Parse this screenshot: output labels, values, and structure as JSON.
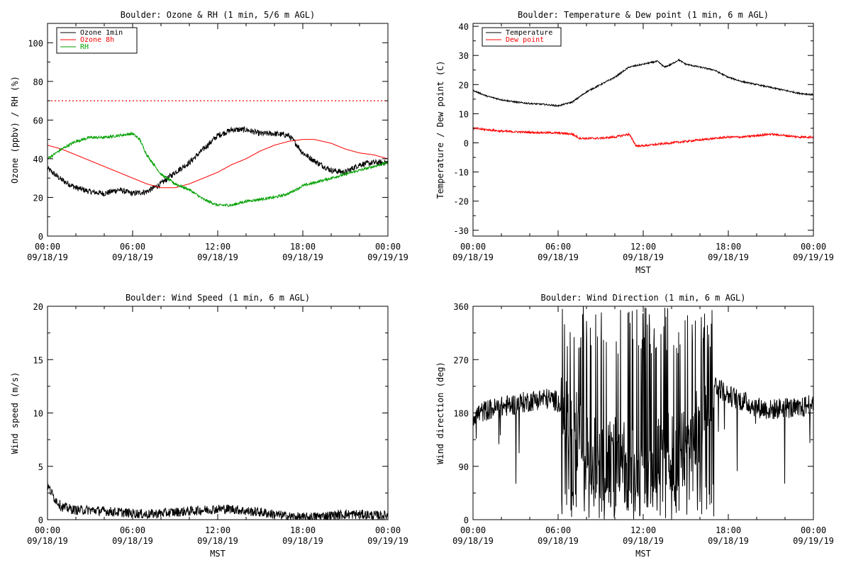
{
  "chart_data": [
    {
      "type": "line",
      "title": "Boulder: Ozone & RH (1 min, 5/6 m AGL)",
      "ylabel": "Ozone (ppbv) / RH (%)",
      "xlabel": "",
      "x_ticks": [
        "00:00\n09/18/19",
        "06:00\n09/18/19",
        "12:00\n09/18/19",
        "18:00\n09/18/19",
        "00:00\n09/19/19"
      ],
      "xlim": [
        0,
        24
      ],
      "ylim": [
        0,
        110
      ],
      "y_ticks": [
        0,
        20,
        40,
        60,
        80,
        100
      ],
      "legend": {
        "position": "top-left",
        "entries": [
          "Ozone 1min",
          "Ozone 8h",
          "RH"
        ]
      },
      "reference_line": {
        "y": 70,
        "style": "dotted",
        "color": "#ff0000"
      },
      "series": [
        {
          "name": "Ozone 1min",
          "color": "#000000",
          "noise": 1.5,
          "x": [
            0,
            1,
            2,
            3,
            4,
            5,
            6,
            7,
            8,
            9,
            10,
            11,
            12,
            13,
            14,
            15,
            16,
            17,
            17.5,
            18,
            19,
            20,
            21,
            22,
            23,
            24
          ],
          "y": [
            35,
            29,
            25,
            23,
            22,
            24,
            22,
            23,
            27,
            33,
            38,
            45,
            52,
            55,
            55,
            53,
            53,
            52,
            48,
            43,
            38,
            34,
            33,
            37,
            38,
            38
          ]
        },
        {
          "name": "Ozone 8h",
          "color": "#ff0000",
          "noise": 0,
          "x": [
            0,
            1,
            2,
            3,
            4,
            5,
            6,
            7,
            8,
            9,
            10,
            11,
            12,
            13,
            14,
            15,
            16,
            17,
            18,
            18.8,
            20,
            21,
            22,
            23,
            24
          ],
          "y": [
            47,
            45,
            42,
            39,
            36,
            33,
            30,
            27,
            25,
            25,
            27,
            30,
            33,
            37,
            40,
            44,
            47,
            49,
            50,
            50,
            48,
            45,
            43,
            42,
            40
          ]
        },
        {
          "name": "RH",
          "color": "#00a000",
          "noise": 0.7,
          "x": [
            0,
            1,
            2,
            3,
            4,
            5,
            6,
            6.5,
            7,
            8,
            9,
            10,
            11,
            12,
            13,
            14,
            15,
            16,
            17,
            18,
            19,
            20,
            21,
            22,
            23,
            24
          ],
          "y": [
            40,
            45,
            49,
            51,
            51,
            52,
            53,
            50,
            42,
            32,
            27,
            24,
            19,
            16,
            16,
            18,
            19,
            20,
            22,
            26,
            28,
            30,
            32,
            34,
            36,
            38
          ]
        }
      ]
    },
    {
      "type": "line",
      "title": "Boulder: Temperature & Dew point (1 min, 6 m AGL)",
      "ylabel": "Temperature / Dew point (C)",
      "xlabel": "MST",
      "x_ticks": [
        "00:00\n09/18/19",
        "06:00\n09/18/19",
        "12:00\n09/18/19",
        "18:00\n09/18/19",
        "00:00\n09/19/19"
      ],
      "xlim": [
        0,
        24
      ],
      "ylim": [
        -32,
        41
      ],
      "y_ticks": [
        -30,
        -20,
        -10,
        0,
        10,
        20,
        30,
        40
      ],
      "legend": {
        "position": "top-left",
        "entries": [
          "Temperature",
          "Dew point"
        ]
      },
      "series": [
        {
          "name": "Temperature",
          "color": "#000000",
          "noise": 0.25,
          "x": [
            0,
            1,
            2,
            3,
            4,
            5,
            6,
            7,
            8,
            9,
            10,
            11,
            12,
            13,
            13.5,
            14,
            14.5,
            15,
            16,
            17,
            18,
            19,
            20,
            21,
            22,
            23,
            24
          ],
          "y": [
            18,
            16,
            14.8,
            14,
            13.5,
            13.2,
            12.7,
            14,
            17.5,
            20,
            22.5,
            26,
            27,
            28,
            26,
            27,
            28.5,
            27,
            26,
            25,
            22.5,
            21,
            20,
            19,
            18,
            17,
            16.5
          ]
        },
        {
          "name": "Dew point",
          "color": "#ff0000",
          "noise": 0.35,
          "x": [
            0,
            1,
            2,
            3,
            4,
            5,
            6,
            7,
            7.5,
            8,
            9,
            10,
            11,
            11.5,
            12,
            13,
            14,
            15,
            16,
            17,
            18,
            19,
            20,
            21,
            22,
            23,
            24
          ],
          "y": [
            5,
            4.5,
            4,
            3.8,
            3.6,
            3.5,
            3.4,
            3,
            1.6,
            1.5,
            1.6,
            2,
            3,
            -1,
            -1,
            -0.5,
            0,
            0.5,
            1,
            1.5,
            2,
            2,
            2.5,
            3,
            2.5,
            2,
            2
          ]
        }
      ]
    },
    {
      "type": "line",
      "title": "Boulder: Wind Speed (1 min, 6 m AGL)",
      "ylabel": "Wind speed (m/s)",
      "xlabel": "MST",
      "x_ticks": [
        "00:00\n09/18/19",
        "06:00\n09/18/19",
        "12:00\n09/18/19",
        "18:00\n09/18/19",
        "00:00\n09/19/19"
      ],
      "xlim": [
        0,
        24
      ],
      "ylim": [
        0,
        20
      ],
      "y_ticks": [
        0,
        5,
        10,
        15,
        20
      ],
      "series": [
        {
          "name": "Wind speed",
          "color": "#000000",
          "noise": 0.45,
          "x": [
            0,
            0.5,
            1,
            2,
            3,
            4,
            5,
            6,
            7,
            8,
            9,
            10,
            11,
            12,
            13,
            14,
            15,
            16,
            17,
            18,
            19,
            20,
            21,
            22,
            23,
            24
          ],
          "y": [
            3.2,
            2.0,
            1.2,
            0.9,
            0.9,
            0.8,
            0.7,
            0.6,
            0.5,
            0.6,
            0.7,
            0.8,
            0.9,
            1.0,
            1.0,
            0.8,
            0.7,
            0.5,
            0.3,
            0.2,
            0.3,
            0.4,
            0.5,
            0.5,
            0.4,
            0.4
          ]
        }
      ]
    },
    {
      "type": "line",
      "title": "Boulder: Wind Direction (1 min, 6 m AGL)",
      "ylabel": "Wind direction (deg)",
      "xlabel": "MST",
      "x_ticks": [
        "00:00\n09/18/19",
        "06:00\n09/18/19",
        "12:00\n09/18/19",
        "18:00\n09/18/19",
        "00:00\n09/19/19"
      ],
      "xlim": [
        0,
        24
      ],
      "ylim": [
        0,
        360
      ],
      "y_ticks": [
        0,
        90,
        180,
        270,
        360
      ],
      "series": [
        {
          "name": "Wind direction",
          "color": "#000000",
          "noise": 18,
          "wrap_between": [
            6.2,
            17
          ],
          "x": [
            0,
            1,
            2,
            3,
            4,
            5,
            6,
            7,
            8,
            9,
            10,
            11,
            12,
            13,
            14,
            15,
            16,
            17,
            18,
            19,
            20,
            21,
            22,
            23,
            24
          ],
          "y": [
            175,
            185,
            190,
            195,
            200,
            205,
            200,
            150,
            120,
            110,
            100,
            90,
            80,
            100,
            110,
            120,
            150,
            230,
            210,
            200,
            190,
            185,
            190,
            185,
            200
          ]
        }
      ]
    }
  ]
}
